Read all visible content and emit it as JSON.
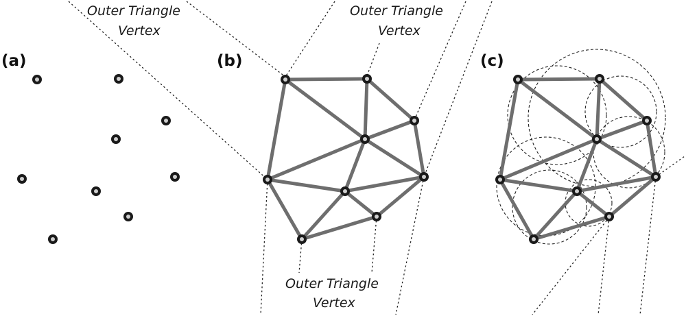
{
  "labels": {
    "panel_a": "(a)",
    "panel_b": "(b)",
    "panel_c": "(c)"
  },
  "callouts": {
    "top_left_line1": "Outer Triangle",
    "top_left_line2": "Vertex",
    "top_right_line1": "Outer Triangle",
    "top_right_line2": "Vertex",
    "bottom_line1": "Outer Triangle",
    "bottom_line2": "Vertex"
  },
  "colors": {
    "edge": "#6e6e6e",
    "point": "#1a1a1a",
    "point_center": "#cfcfcf",
    "guide_line": "#222222"
  }
}
